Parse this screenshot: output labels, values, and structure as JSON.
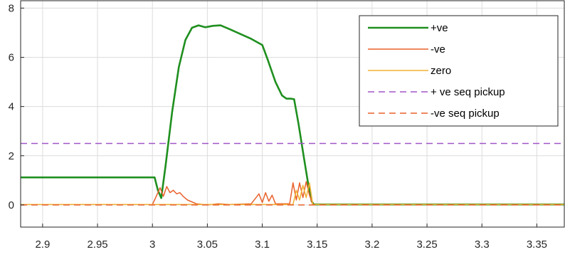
{
  "chart_data": {
    "type": "line",
    "title": "",
    "xlabel": "",
    "ylabel": "",
    "xlim": [
      2.88,
      3.375
    ],
    "ylim": [
      -0.9,
      8.3
    ],
    "xticks": [
      2.9,
      2.95,
      3,
      3.05,
      3.1,
      3.15,
      3.2,
      3.25,
      3.3,
      3.35
    ],
    "xtick_labels": [
      "2.9",
      "2.95",
      "3",
      "3.05",
      "3.1",
      "3.15",
      "3.2",
      "3.25",
      "3.3",
      "3.35"
    ],
    "yticks": [
      0,
      2,
      4,
      6,
      8
    ],
    "ytick_labels": [
      "0",
      "2",
      "4",
      "6",
      "8"
    ],
    "grid": true,
    "legend_position": "top-right",
    "series": [
      {
        "name": "+ve",
        "color": "#1f8f1f",
        "style": "solid",
        "width": "thick",
        "x": [
          2.88,
          3.002,
          3.005,
          3.008,
          3.012,
          3.018,
          3.024,
          3.03,
          3.036,
          3.042,
          3.048,
          3.055,
          3.062,
          3.07,
          3.08,
          3.09,
          3.1,
          3.105,
          3.112,
          3.118,
          3.122,
          3.126,
          3.129,
          3.133,
          3.138,
          3.142,
          3.145,
          3.147,
          3.375
        ],
        "y": [
          1.12,
          1.12,
          0.6,
          0.28,
          1.6,
          3.8,
          5.6,
          6.7,
          7.2,
          7.3,
          7.22,
          7.28,
          7.3,
          7.15,
          6.95,
          6.75,
          6.5,
          5.9,
          5.0,
          4.45,
          4.32,
          4.32,
          4.3,
          3.3,
          1.9,
          0.8,
          0.15,
          0.02,
          0.02
        ]
      },
      {
        "name": "-ve",
        "color": "#e8612c",
        "style": "solid",
        "width": "thin",
        "x": [
          2.88,
          3.0,
          3.003,
          3.007,
          3.01,
          3.013,
          3.016,
          3.019,
          3.022,
          3.025,
          3.028,
          3.032,
          3.04,
          3.05,
          3.06,
          3.07,
          3.09,
          3.097,
          3.1,
          3.103,
          3.106,
          3.109,
          3.112,
          3.125,
          3.128,
          3.131,
          3.134,
          3.137,
          3.14,
          3.143,
          3.146,
          3.375
        ],
        "y": [
          0.02,
          0.02,
          0.3,
          0.7,
          0.35,
          0.75,
          0.5,
          0.6,
          0.45,
          0.5,
          0.35,
          0.2,
          0.05,
          0.0,
          0.05,
          0.02,
          0.05,
          0.45,
          0.1,
          0.5,
          0.15,
          0.4,
          0.05,
          0.05,
          0.9,
          0.2,
          0.9,
          0.3,
          0.95,
          0.4,
          0.02,
          0.02
        ]
      },
      {
        "name": "zero",
        "color": "#f2b134",
        "style": "solid",
        "width": "thin",
        "x": [
          2.88,
          3.128,
          3.131,
          3.134,
          3.137,
          3.14,
          3.143,
          3.146,
          3.375
        ],
        "y": [
          0.02,
          0.02,
          0.6,
          0.2,
          0.8,
          0.3,
          0.9,
          0.02,
          0.02
        ]
      },
      {
        "name": "+ ve seq pickup",
        "color": "#a055c8",
        "style": "dashed",
        "width": "thin",
        "x": [
          2.88,
          3.375
        ],
        "y": [
          2.5,
          2.5
        ]
      },
      {
        "name": "-ve seq pickup",
        "color": "#e8612c",
        "style": "dashed",
        "width": "thin",
        "x": [
          2.88,
          3.375
        ],
        "y": [
          0.0,
          0.0
        ]
      }
    ]
  }
}
